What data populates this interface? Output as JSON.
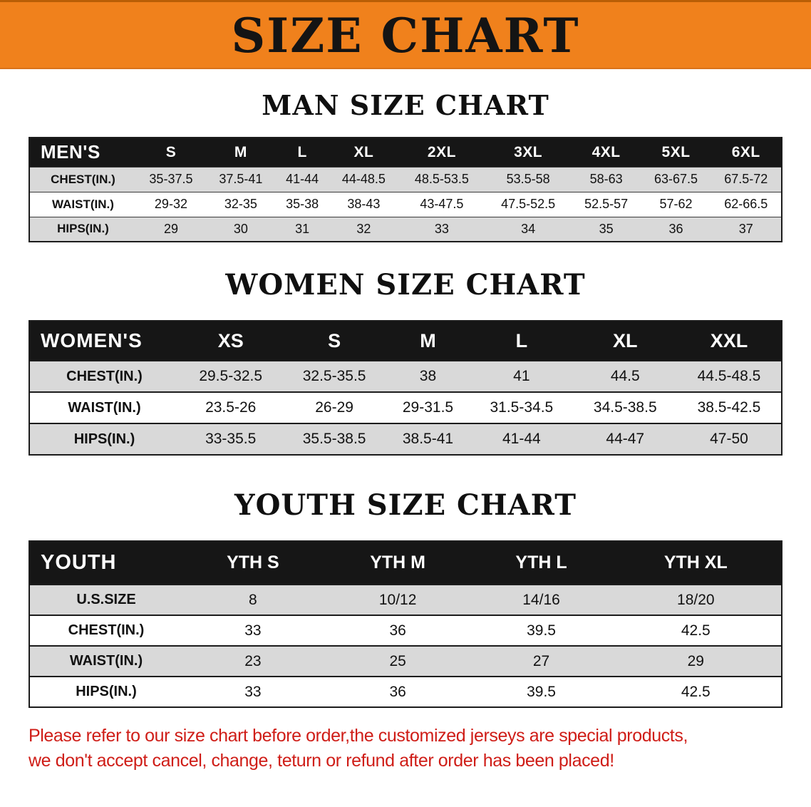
{
  "banner": {
    "title": "SIZE CHART"
  },
  "sections": [
    {
      "heading": "MAN SIZE CHART",
      "table": {
        "header": [
          "MEN'S",
          "S",
          "M",
          "L",
          "XL",
          "2XL",
          "3XL",
          "4XL",
          "5XL",
          "6XL"
        ],
        "rows": [
          [
            "CHEST(IN.)",
            "35-37.5",
            "37.5-41",
            "41-44",
            "44-48.5",
            "48.5-53.5",
            "53.5-58",
            "58-63",
            "63-67.5",
            "67.5-72"
          ],
          [
            "WAIST(IN.)",
            "29-32",
            "32-35",
            "35-38",
            "38-43",
            "43-47.5",
            "47.5-52.5",
            "52.5-57",
            "57-62",
            "62-66.5"
          ],
          [
            "HIPS(IN.)",
            "29",
            "30",
            "31",
            "32",
            "33",
            "34",
            "35",
            "36",
            "37"
          ]
        ]
      }
    },
    {
      "heading": "WOMEN SIZE CHART",
      "table": {
        "header": [
          "WOMEN'S",
          "XS",
          "S",
          "M",
          "L",
          "XL",
          "XXL"
        ],
        "rows": [
          [
            "CHEST(IN.)",
            "29.5-32.5",
            "32.5-35.5",
            "38",
            "41",
            "44.5",
            "44.5-48.5"
          ],
          [
            "WAIST(IN.)",
            "23.5-26",
            "26-29",
            "29-31.5",
            "31.5-34.5",
            "34.5-38.5",
            "38.5-42.5"
          ],
          [
            "HIPS(IN.)",
            "33-35.5",
            "35.5-38.5",
            "38.5-41",
            "41-44",
            "44-47",
            "47-50"
          ]
        ]
      }
    },
    {
      "heading": "YOUTH SIZE CHART",
      "table": {
        "header": [
          "YOUTH",
          "YTH S",
          "YTH M",
          "YTH L",
          "YTH XL"
        ],
        "rows": [
          [
            "U.S.SIZE",
            "8",
            "10/12",
            "14/16",
            "18/20"
          ],
          [
            "CHEST(IN.)",
            "33",
            "36",
            "39.5",
            "42.5"
          ],
          [
            "WAIST(IN.)",
            "23",
            "25",
            "27",
            "29"
          ],
          [
            "HIPS(IN.)",
            "33",
            "36",
            "39.5",
            "42.5"
          ]
        ]
      }
    }
  ],
  "footer": {
    "lines": [
      "Please refer to our size chart before order,the customized jerseys are special products,",
      "we don't accept cancel, change, teturn or refund after order has been placed!"
    ]
  },
  "colors": {
    "banner_bg": "#f0811c",
    "banner_text": "#141414",
    "table_header_bg": "#161616",
    "table_header_text": "#ffffff",
    "row_shaded": "#d9d9d9",
    "row_plain": "#ffffff",
    "footer_text": "#cf1d17"
  }
}
